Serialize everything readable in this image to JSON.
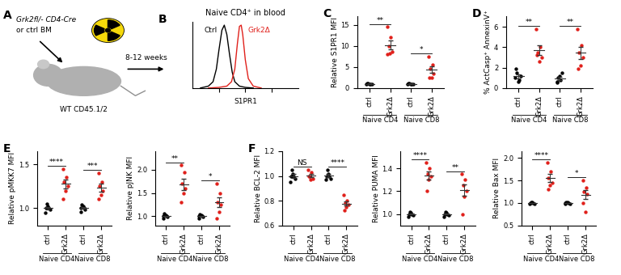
{
  "diagram": {
    "label": "A",
    "donor_line1": "Grk2fl/- CD4-Cre",
    "donor_line2": "or ctrl BM",
    "time": "8-12 weeks",
    "recipient": "WT CD45.1/2"
  },
  "chart_data": [
    {
      "type": "line",
      "label": "B",
      "title": "Naive CD4⁺ in blood",
      "xlabel": "S1PR1",
      "log": "x",
      "xlim": [
        10,
        100000
      ],
      "xticks": [
        100,
        1000,
        10000
      ],
      "ylim": [
        0,
        105
      ],
      "yticks": [],
      "tick_labels": false,
      "series": [
        {
          "name": "Ctrl",
          "color": "#000000",
          "x": [
            20,
            40,
            60,
            80,
            100,
            130,
            160,
            200,
            250,
            320,
            400,
            600,
            1000,
            2000
          ],
          "values": [
            0,
            3,
            10,
            30,
            60,
            92,
            100,
            85,
            55,
            25,
            10,
            3,
            1,
            0
          ]
        },
        {
          "name": "Grk2Δ",
          "color": "#e0201b",
          "x": [
            40,
            100,
            200,
            300,
            400,
            500,
            600,
            700,
            800,
            1000,
            1300,
            2000,
            4000
          ],
          "values": [
            0,
            1,
            3,
            10,
            30,
            70,
            98,
            100,
            85,
            45,
            15,
            3,
            0
          ]
        }
      ]
    },
    {
      "type": "strip",
      "label": "C",
      "ylabel": "Relative S1PR1 MFI",
      "categories": [
        "ctrl",
        "Grk2Δ",
        "ctrl",
        "Grk2Δ"
      ],
      "groups": [
        "Naive CD4",
        "Naive CD8"
      ],
      "colors": [
        "#000000",
        "#e0201b",
        "#000000",
        "#e0201b"
      ],
      "ylim": [
        0,
        17
      ],
      "yticks": [
        0,
        5,
        10,
        15
      ],
      "points": [
        [
          1.0,
          0.9,
          1.1,
          1.0,
          0.95,
          1.05
        ],
        [
          14.5,
          12.0,
          10.0,
          8.7,
          8.2,
          8.0
        ],
        [
          1.0,
          0.9,
          1.1,
          1.0,
          0.95,
          1.05
        ],
        [
          7.5,
          5.5,
          4.5,
          3.5,
          2.5,
          2.5
        ]
      ],
      "significance": [
        "**",
        "*"
      ]
    },
    {
      "type": "strip",
      "label": "D",
      "ylabel": "% ActCasp⁺ AnnexinV⁺",
      "categories": [
        "ctrl",
        "Grk2Δ",
        "ctrl",
        "Grk2Δ"
      ],
      "groups": [
        "Naive CD4",
        "Naive CD8"
      ],
      "colors": [
        "#000000",
        "#e0201b",
        "#000000",
        "#e0201b"
      ],
      "ylim": [
        0,
        7
      ],
      "yticks": [
        0,
        2,
        4,
        6
      ],
      "points": [
        [
          1.0,
          0.8,
          1.5,
          1.2,
          0.6,
          1.9
        ],
        [
          5.8,
          4.0,
          3.5,
          3.0,
          2.6,
          3.2
        ],
        [
          0.5,
          0.8,
          1.0,
          1.5,
          1.2,
          0.6
        ],
        [
          5.8,
          4.2,
          3.5,
          3.0,
          2.2,
          1.9
        ]
      ],
      "significance": [
        "**",
        "**"
      ]
    },
    {
      "type": "strip",
      "label": "E",
      "ylabel": "Relative pMKK7 MFI",
      "categories": [
        "ctrl",
        "Grk2Δ",
        "ctrl",
        "Grk2Δ"
      ],
      "groups": [
        "Naive CD4",
        "Naive CD8"
      ],
      "colors": [
        "#000000",
        "#e0201b",
        "#000000",
        "#e0201b"
      ],
      "ylim": [
        0.8,
        1.65
      ],
      "yticks": [
        1.0,
        1.5
      ],
      "points": [
        [
          0.95,
          1.0,
          1.05,
          0.98,
          1.02,
          1.0
        ],
        [
          1.45,
          1.35,
          1.3,
          1.25,
          1.2,
          1.1
        ],
        [
          0.96,
          1.0,
          1.04,
          0.98,
          1.02,
          1.0
        ],
        [
          1.4,
          1.3,
          1.25,
          1.2,
          1.15,
          1.1
        ]
      ],
      "significance": [
        "****",
        "***"
      ]
    },
    {
      "type": "strip",
      "ylabel": "Relative pJNK MFI",
      "categories": [
        "ctrl",
        "Grk2Δ",
        "ctrl",
        "Grk2Δ"
      ],
      "groups": [
        "Naive CD4",
        "Naive CD8"
      ],
      "colors": [
        "#000000",
        "#e0201b",
        "#000000",
        "#e0201b"
      ],
      "ylim": [
        0.8,
        2.4
      ],
      "yticks": [
        1.0,
        1.5,
        2.0
      ],
      "points": [
        [
          0.95,
          1.0,
          1.05,
          0.98,
          1.02,
          1.0
        ],
        [
          2.1,
          1.95,
          1.7,
          1.6,
          1.5,
          1.3
        ],
        [
          0.96,
          1.0,
          1.04,
          0.98,
          1.02,
          1.0
        ],
        [
          1.7,
          1.5,
          1.3,
          1.25,
          1.1,
          0.95
        ]
      ],
      "significance": [
        "**",
        "*"
      ]
    },
    {
      "type": "strip",
      "label": "F",
      "ylabel": "Relative BCL-2 MFI",
      "categories": [
        "ctrl",
        "Grk2Δ",
        "ctrl",
        "Grk2Δ"
      ],
      "groups": [
        "Naive CD4",
        "Naive CD8"
      ],
      "colors": [
        "#000000",
        "#e0201b",
        "#000000",
        "#e0201b"
      ],
      "ylim": [
        0.6,
        1.2
      ],
      "yticks": [
        0.6,
        0.8,
        1.0,
        1.2
      ],
      "points": [
        [
          0.95,
          1.0,
          1.05,
          0.98,
          1.02,
          1.0
        ],
        [
          1.05,
          1.03,
          1.0,
          0.98,
          0.97,
          1.0
        ],
        [
          0.97,
          1.0,
          1.05,
          0.98,
          1.02,
          1.0
        ],
        [
          0.85,
          0.8,
          0.78,
          0.77,
          0.75,
          0.72
        ]
      ],
      "significance": [
        "NS",
        "****"
      ]
    },
    {
      "type": "strip",
      "ylabel": "Relative PUMA MFI",
      "categories": [
        "ctrl",
        "Grk2Δ",
        "ctrl",
        "Grk2Δ"
      ],
      "groups": [
        "Naive CD4",
        "Naive CD8"
      ],
      "colors": [
        "#000000",
        "#e0201b",
        "#000000",
        "#e0201b"
      ],
      "ylim": [
        0.9,
        1.55
      ],
      "yticks": [
        1.0,
        1.2,
        1.4
      ],
      "points": [
        [
          0.98,
          1.0,
          1.02,
          0.99,
          1.01,
          1.0
        ],
        [
          1.45,
          1.4,
          1.35,
          1.33,
          1.3,
          1.2
        ],
        [
          0.98,
          1.0,
          1.02,
          0.99,
          1.01,
          1.0
        ],
        [
          1.35,
          1.3,
          1.25,
          1.2,
          1.15,
          1.0
        ]
      ],
      "significance": [
        "****",
        "**"
      ]
    },
    {
      "type": "strip",
      "ylabel": "Relative Bax MFI",
      "categories": [
        "ctrl",
        "Grk2Δ",
        "ctrl",
        "Grk2Δ"
      ],
      "groups": [
        "Naive CD4",
        "Naive CD8"
      ],
      "colors": [
        "#000000",
        "#e0201b",
        "#000000",
        "#e0201b"
      ],
      "ylim": [
        0.5,
        2.15
      ],
      "yticks": [
        0.5,
        1.0,
        1.5,
        2.0
      ],
      "points": [
        [
          0.98,
          1.0,
          1.02,
          0.99,
          1.01,
          1.0
        ],
        [
          1.9,
          1.7,
          1.55,
          1.45,
          1.4,
          1.3
        ],
        [
          0.98,
          1.0,
          1.02,
          0.99,
          1.01,
          1.0
        ],
        [
          1.5,
          1.35,
          1.25,
          1.2,
          0.8,
          1.0
        ]
      ],
      "significance": [
        "****",
        "*"
      ]
    }
  ]
}
